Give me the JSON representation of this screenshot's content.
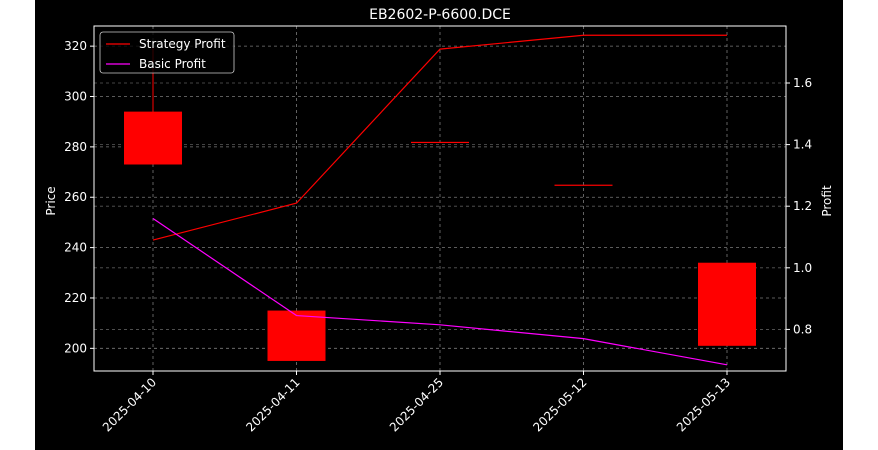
{
  "chart_data": {
    "type": "candlestick",
    "title": "EB2602-P-6600.DCE",
    "ylabel": "Price",
    "y2label": "Profit",
    "categories": [
      "2025-04-10",
      "2025-04-11",
      "2025-04-25",
      "2025-05-12",
      "2025-05-13"
    ],
    "ylim": [
      191,
      328
    ],
    "y2lim": [
      0.665,
      1.785
    ],
    "yticks": [
      200,
      220,
      240,
      260,
      280,
      300,
      320
    ],
    "y2ticks": [
      0.8,
      1.0,
      1.2,
      1.4,
      1.6
    ],
    "grid": true,
    "candles": [
      {
        "open": 294,
        "high": 320,
        "low": 273,
        "close": 273
      },
      {
        "open": 215,
        "high": 215,
        "low": 195,
        "close": 195
      },
      {
        "open": 282,
        "high": 282,
        "low": 282,
        "close": 282
      },
      {
        "open": 265,
        "high": 265,
        "low": 265,
        "close": 265
      },
      {
        "open": 234,
        "high": 234,
        "low": 201,
        "close": 201
      }
    ],
    "series": [
      {
        "name": "Strategy Profit",
        "color": "#ff0000",
        "values": [
          1.09,
          1.21,
          1.71,
          1.755,
          1.755
        ]
      },
      {
        "name": "Basic Profit",
        "color": "#ff00ff",
        "values": [
          1.16,
          0.845,
          0.815,
          0.77,
          0.685
        ]
      }
    ],
    "legend": "top-left",
    "candle_color": "#ff0000"
  }
}
